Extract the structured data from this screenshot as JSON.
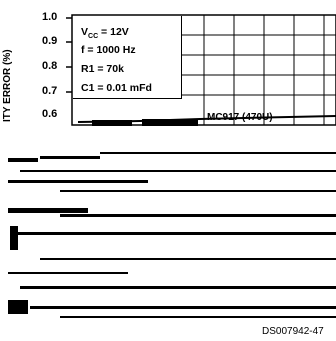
{
  "chart_data": {
    "type": "line",
    "ylabel": "ITY ERROR (%)",
    "yticks": [
      "1.0",
      "0.9",
      "0.8",
      "0.7",
      "0.6"
    ],
    "ylim": [
      0.6,
      1.0
    ],
    "grid": true,
    "conditions": [
      {
        "label": "V",
        "sub": "CC",
        "rest": " = 12V"
      },
      {
        "label": "f = 1000 Hz",
        "sub": "",
        "rest": ""
      },
      {
        "label": "R1 = 70k",
        "sub": "",
        "rest": ""
      },
      {
        "label": "C1 = 0.01 mFd",
        "sub": "",
        "rest": ""
      }
    ],
    "series": [
      {
        "name": "MC917 (470U)"
      }
    ]
  },
  "document_code": "DS007942-47"
}
